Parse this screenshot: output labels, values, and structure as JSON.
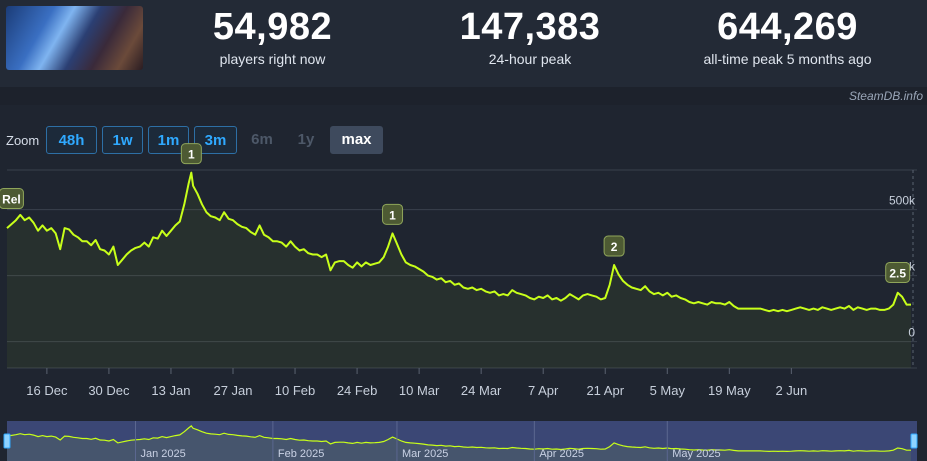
{
  "header": {
    "stats": [
      {
        "value": "54,982",
        "label": "players right now"
      },
      {
        "value": "147,383",
        "label": "24-hour peak"
      },
      {
        "value": "644,269",
        "label": "all-time peak 5 months ago"
      }
    ],
    "thumbnail_icon": "game-thumbnail-icon"
  },
  "credit": "SteamDB.info",
  "zoom": {
    "label": "Zoom",
    "options": [
      {
        "label": "48h",
        "state": "enabled"
      },
      {
        "label": "1w",
        "state": "enabled"
      },
      {
        "label": "1m",
        "state": "enabled"
      },
      {
        "label": "3m",
        "state": "enabled"
      },
      {
        "label": "6m",
        "state": "disabled"
      },
      {
        "label": "1y",
        "state": "disabled"
      },
      {
        "label": "max",
        "state": "selected"
      }
    ]
  },
  "colors": {
    "line": "#c8ff1a",
    "navigator_bg": "#3b4775",
    "grid": "#3a414d",
    "text": "#c7cfdb"
  },
  "chart_data": {
    "type": "line",
    "grid": true,
    "ylim": [
      -100000,
      650000
    ],
    "y_ticks": [
      {
        "v": 0,
        "label": "0"
      },
      {
        "v": 250000,
        "label": "250k"
      },
      {
        "v": 500000,
        "label": "500k"
      }
    ],
    "x_ticks": [
      {
        "label": "16 Dec",
        "day": 13
      },
      {
        "label": "30 Dec",
        "day": 27
      },
      {
        "label": "13 Jan",
        "day": 41
      },
      {
        "label": "27 Jan",
        "day": 55
      },
      {
        "label": "10 Feb",
        "day": 69
      },
      {
        "label": "24 Feb",
        "day": 83
      },
      {
        "label": "10 Mar",
        "day": 97
      },
      {
        "label": "24 Mar",
        "day": 111
      },
      {
        "label": "7 Apr",
        "day": 125
      },
      {
        "label": "21 Apr",
        "day": 139
      },
      {
        "label": "5 May",
        "day": 153
      },
      {
        "label": "19 May",
        "day": 167
      },
      {
        "label": "2 Jun",
        "day": 181
      }
    ],
    "series": [
      {
        "points": [
          [
            4,
            430000
          ],
          [
            6,
            460000
          ],
          [
            7,
            480000
          ],
          [
            8,
            460000
          ],
          [
            9,
            470000
          ],
          [
            10,
            450000
          ],
          [
            11,
            420000
          ],
          [
            12,
            440000
          ],
          [
            13,
            420000
          ],
          [
            14,
            430000
          ],
          [
            15,
            410000
          ],
          [
            16,
            350000
          ],
          [
            17,
            430000
          ],
          [
            18,
            425000
          ],
          [
            19,
            405000
          ],
          [
            20,
            395000
          ],
          [
            21,
            380000
          ],
          [
            22,
            380000
          ],
          [
            23,
            365000
          ],
          [
            24,
            385000
          ],
          [
            25,
            350000
          ],
          [
            26,
            345000
          ],
          [
            27,
            330000
          ],
          [
            28,
            360000
          ],
          [
            29,
            290000
          ],
          [
            30,
            310000
          ],
          [
            31,
            330000
          ],
          [
            32,
            345000
          ],
          [
            33,
            355000
          ],
          [
            34,
            360000
          ],
          [
            35,
            375000
          ],
          [
            36,
            360000
          ],
          [
            37,
            395000
          ],
          [
            38,
            390000
          ],
          [
            39,
            420000
          ],
          [
            40,
            400000
          ],
          [
            41,
            420000
          ],
          [
            42,
            440000
          ],
          [
            43,
            455000
          ],
          [
            44,
            520000
          ],
          [
            45,
            600000
          ],
          [
            45.6,
            640000
          ],
          [
            46,
            590000
          ],
          [
            47,
            560000
          ],
          [
            48,
            520000
          ],
          [
            49,
            490000
          ],
          [
            50,
            475000
          ],
          [
            51,
            470000
          ],
          [
            52,
            460000
          ],
          [
            53,
            490000
          ],
          [
            54,
            465000
          ],
          [
            55,
            460000
          ],
          [
            56,
            445000
          ],
          [
            57,
            435000
          ],
          [
            58,
            430000
          ],
          [
            59,
            415000
          ],
          [
            60,
            405000
          ],
          [
            61,
            440000
          ],
          [
            62,
            405000
          ],
          [
            63,
            395000
          ],
          [
            64,
            380000
          ],
          [
            65,
            380000
          ],
          [
            66,
            375000
          ],
          [
            67,
            360000
          ],
          [
            68,
            380000
          ],
          [
            69,
            360000
          ],
          [
            70,
            345000
          ],
          [
            71,
            350000
          ],
          [
            72,
            335000
          ],
          [
            73,
            330000
          ],
          [
            74,
            330000
          ],
          [
            75,
            320000
          ],
          [
            76,
            330000
          ],
          [
            77,
            270000
          ],
          [
            78,
            300000
          ],
          [
            79,
            305000
          ],
          [
            80,
            305000
          ],
          [
            81,
            290000
          ],
          [
            82,
            280000
          ],
          [
            83,
            300000
          ],
          [
            84,
            285000
          ],
          [
            85,
            300000
          ],
          [
            86,
            290000
          ],
          [
            87,
            295000
          ],
          [
            88,
            300000
          ],
          [
            89,
            320000
          ],
          [
            90,
            360000
          ],
          [
            91,
            410000
          ],
          [
            92,
            370000
          ],
          [
            93,
            330000
          ],
          [
            94,
            300000
          ],
          [
            95,
            290000
          ],
          [
            96,
            285000
          ],
          [
            97,
            275000
          ],
          [
            98,
            265000
          ],
          [
            99,
            250000
          ],
          [
            100,
            245000
          ],
          [
            101,
            235000
          ],
          [
            102,
            240000
          ],
          [
            103,
            225000
          ],
          [
            104,
            230000
          ],
          [
            105,
            215000
          ],
          [
            106,
            220000
          ],
          [
            107,
            205000
          ],
          [
            108,
            200000
          ],
          [
            109,
            205000
          ],
          [
            110,
            195000
          ],
          [
            111,
            200000
          ],
          [
            112,
            190000
          ],
          [
            113,
            185000
          ],
          [
            114,
            190000
          ],
          [
            115,
            175000
          ],
          [
            116,
            180000
          ],
          [
            117,
            175000
          ],
          [
            118,
            195000
          ],
          [
            119,
            185000
          ],
          [
            120,
            180000
          ],
          [
            121,
            175000
          ],
          [
            122,
            165000
          ],
          [
            123,
            160000
          ],
          [
            124,
            170000
          ],
          [
            125,
            165000
          ],
          [
            126,
            175000
          ],
          [
            127,
            160000
          ],
          [
            128,
            165000
          ],
          [
            129,
            155000
          ],
          [
            130,
            165000
          ],
          [
            131,
            180000
          ],
          [
            132,
            170000
          ],
          [
            133,
            160000
          ],
          [
            134,
            175000
          ],
          [
            135,
            180000
          ],
          [
            136,
            175000
          ],
          [
            137,
            170000
          ],
          [
            138,
            160000
          ],
          [
            139,
            165000
          ],
          [
            140,
            215000
          ],
          [
            141,
            290000
          ],
          [
            142,
            255000
          ],
          [
            143,
            230000
          ],
          [
            144,
            215000
          ],
          [
            145,
            205000
          ],
          [
            146,
            200000
          ],
          [
            147,
            195000
          ],
          [
            148,
            210000
          ],
          [
            149,
            190000
          ],
          [
            150,
            180000
          ],
          [
            151,
            185000
          ],
          [
            152,
            175000
          ],
          [
            153,
            185000
          ],
          [
            154,
            170000
          ],
          [
            155,
            175000
          ],
          [
            156,
            165000
          ],
          [
            157,
            160000
          ],
          [
            158,
            150000
          ],
          [
            159,
            145000
          ],
          [
            160,
            150000
          ],
          [
            161,
            145000
          ],
          [
            162,
            140000
          ],
          [
            163,
            150000
          ],
          [
            164,
            145000
          ],
          [
            165,
            145000
          ],
          [
            166,
            140000
          ],
          [
            167,
            150000
          ],
          [
            168,
            135000
          ],
          [
            169,
            125000
          ],
          [
            170,
            125000
          ],
          [
            171,
            125000
          ],
          [
            172,
            125000
          ],
          [
            173,
            125000
          ],
          [
            174,
            125000
          ],
          [
            175,
            120000
          ],
          [
            176,
            115000
          ],
          [
            177,
            120000
          ],
          [
            178,
            115000
          ],
          [
            179,
            120000
          ],
          [
            180,
            115000
          ],
          [
            181,
            120000
          ],
          [
            182,
            125000
          ],
          [
            183,
            130000
          ],
          [
            184,
            125000
          ],
          [
            185,
            120000
          ],
          [
            186,
            125000
          ],
          [
            187,
            120000
          ],
          [
            188,
            130000
          ],
          [
            189,
            125000
          ],
          [
            190,
            120000
          ],
          [
            191,
            125000
          ],
          [
            192,
            130000
          ],
          [
            193,
            125000
          ],
          [
            194,
            135000
          ],
          [
            195,
            120000
          ],
          [
            196,
            130000
          ],
          [
            197,
            125000
          ],
          [
            198,
            120000
          ],
          [
            199,
            125000
          ],
          [
            200,
            125000
          ],
          [
            201,
            120000
          ],
          [
            202,
            120000
          ],
          [
            203,
            125000
          ],
          [
            204,
            140000
          ],
          [
            205,
            185000
          ],
          [
            206,
            170000
          ],
          [
            207,
            140000
          ],
          [
            208,
            140000
          ]
        ]
      }
    ],
    "annotations": [
      {
        "label": "Rel",
        "day": 5,
        "value": 470000
      },
      {
        "label": "1",
        "day": 45.6,
        "value": 640000
      },
      {
        "label": "1",
        "day": 91,
        "value": 410000
      },
      {
        "label": "2",
        "day": 141,
        "value": 290000
      },
      {
        "label": "2.5",
        "day": 205,
        "value": 190000
      }
    ],
    "navigator": {
      "labels": [
        "Jan 2025",
        "Feb 2025",
        "Mar 2025",
        "Apr 2025",
        "May 2025"
      ]
    }
  }
}
